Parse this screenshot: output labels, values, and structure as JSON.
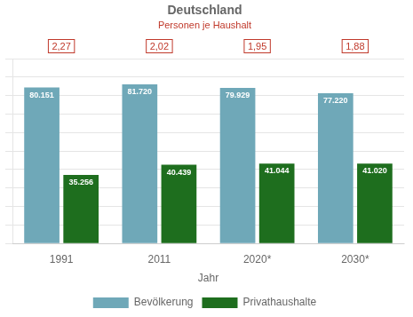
{
  "chart_data": {
    "type": "bar",
    "title": "Deutschland",
    "x_label": "Jahr",
    "categories": [
      "1991",
      "2011",
      "2020*",
      "2030*"
    ],
    "series": [
      {
        "name": "Bevölkerung",
        "color": "#6fa8b8",
        "values": [
          80151,
          81720,
          79929,
          77220
        ],
        "value_labels": [
          "80.151",
          "81.720",
          "79.929",
          "77.220"
        ]
      },
      {
        "name": "Privathaushalte",
        "color": "#1e6e1e",
        "values": [
          35256,
          40439,
          41044,
          41020
        ],
        "value_labels": [
          "35.256",
          "40.439",
          "41.044",
          "41.020"
        ]
      }
    ],
    "group_labels": {
      "name": "Personen je Haushalt",
      "color": "#c0392b",
      "values": [
        2.27,
        2.02,
        1.95,
        1.88
      ],
      "value_labels": [
        "2,27",
        "2,02",
        "1,95",
        "1,88"
      ]
    },
    "ylim": [
      0,
      95000
    ],
    "yticks": [
      0,
      10000,
      20000,
      30000,
      40000,
      50000,
      60000,
      70000,
      80000,
      90000
    ],
    "grid": true,
    "legend": "bottom",
    "data_labels": true,
    "tick_labels": "x"
  }
}
